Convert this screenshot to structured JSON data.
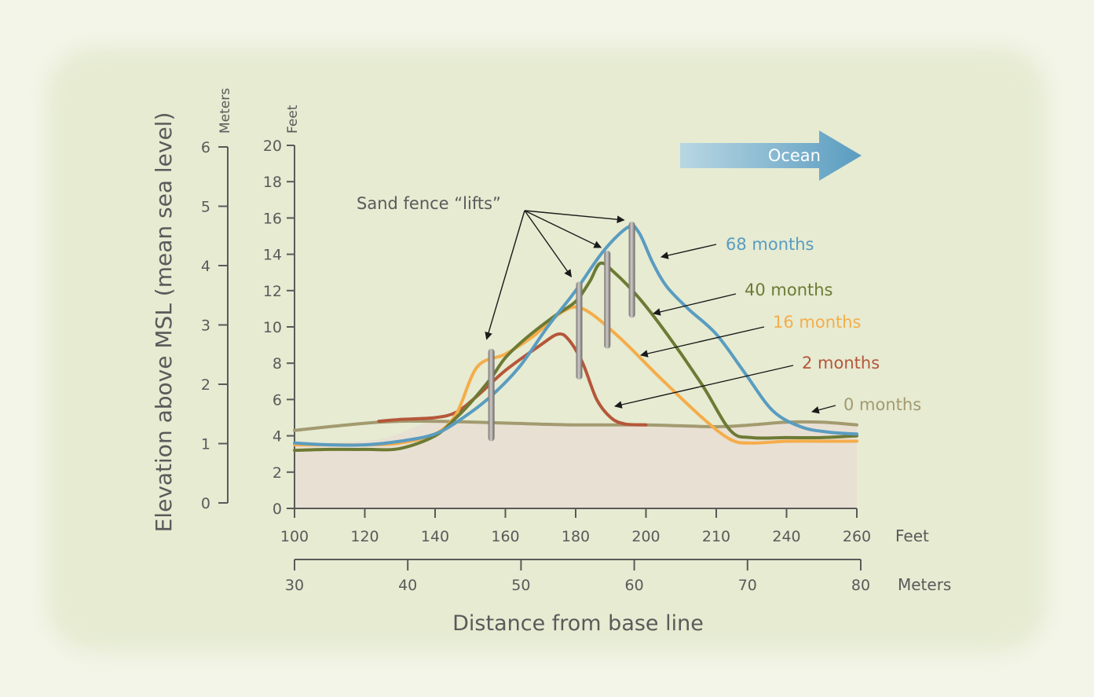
{
  "chart_data": {
    "type": "line",
    "ylabel": "Elevation above MSL (mean sea level)",
    "xlabel": "Distance from base line",
    "y_feet": {
      "unit_label": "Feet",
      "ticks": [
        0,
        2,
        4,
        6,
        8,
        10,
        12,
        14,
        16,
        18,
        20
      ],
      "ylim": [
        0,
        20
      ]
    },
    "y_meters": {
      "unit_label": "Meters",
      "ticks": [
        0,
        1,
        2,
        3,
        4,
        5,
        6
      ]
    },
    "x_feet": {
      "unit_label": "Feet",
      "ticks": [
        "100",
        "120",
        "140",
        "160",
        "180",
        "200",
        "210",
        "240",
        "260"
      ]
    },
    "x_meters": {
      "unit_label": "Meters",
      "ticks": [
        "30",
        "40",
        "50",
        "60",
        "70",
        "80"
      ]
    },
    "ocean_label": "Ocean",
    "fence_label": "Sand fence “lifts”",
    "fences": [
      {
        "x": 2.8,
        "bottom": 3.7,
        "top": 8.8
      },
      {
        "x": 4.05,
        "bottom": 7.1,
        "top": 12.5
      },
      {
        "x": 4.45,
        "bottom": 8.8,
        "top": 14.2
      },
      {
        "x": 4.8,
        "bottom": 10.5,
        "top": 15.8
      }
    ],
    "series": [
      {
        "name": "0 months",
        "color": "#a39a70",
        "x": [
          0,
          1.2,
          2,
          3,
          4,
          5,
          6,
          6.5,
          7,
          7.5,
          8
        ],
        "y": [
          4.3,
          4.75,
          4.8,
          4.7,
          4.6,
          4.6,
          4.5,
          4.6,
          4.75,
          4.75,
          4.6
        ]
      },
      {
        "name": "2 months",
        "color": "#b5573a",
        "x": [
          1.2,
          1.5,
          2.0,
          2.3,
          2.6,
          3.0,
          3.5,
          3.75,
          3.9,
          4.1,
          4.3,
          4.5,
          4.7,
          5.0
        ],
        "y": [
          4.8,
          4.9,
          5.0,
          5.3,
          6.2,
          7.6,
          9.0,
          9.6,
          9.3,
          8.0,
          6.0,
          5.0,
          4.65,
          4.6
        ]
      },
      {
        "name": "16 months",
        "color": "#f5ad4a",
        "x": [
          0,
          0.5,
          1.0,
          1.5,
          2.0,
          2.3,
          2.6,
          3.0,
          3.4,
          3.8,
          4.1,
          4.6,
          5.2,
          5.8,
          6.2,
          6.5,
          7.0,
          7.5,
          8
        ],
        "y": [
          3.5,
          3.5,
          3.5,
          3.6,
          4.1,
          5.2,
          7.8,
          8.5,
          9.5,
          10.8,
          11.0,
          9.5,
          7.2,
          5.0,
          3.8,
          3.6,
          3.7,
          3.7,
          3.7
        ]
      },
      {
        "name": "40 months",
        "color": "#6d7a34",
        "x": [
          0,
          0.5,
          1.0,
          1.5,
          2.0,
          2.3,
          2.5,
          2.8,
          3.0,
          3.3,
          3.7,
          4.0,
          4.2,
          4.35,
          4.55,
          4.9,
          5.3,
          5.8,
          6.2,
          6.5,
          7.0,
          7.5,
          8
        ],
        "y": [
          3.2,
          3.25,
          3.25,
          3.3,
          4.0,
          5.0,
          5.8,
          7.2,
          8.3,
          9.4,
          10.6,
          11.4,
          12.5,
          13.5,
          13.0,
          11.6,
          9.6,
          6.8,
          4.3,
          3.9,
          3.9,
          3.9,
          4.0
        ]
      },
      {
        "name": "68 months",
        "color": "#5a9cc0",
        "x": [
          0,
          0.5,
          1.0,
          1.5,
          2.0,
          2.4,
          2.8,
          3.2,
          3.6,
          4.0,
          4.4,
          4.75,
          4.9,
          5.1,
          5.3,
          5.6,
          6.0,
          6.4,
          6.8,
          7.2,
          7.6,
          8
        ],
        "y": [
          3.6,
          3.5,
          3.5,
          3.7,
          4.1,
          5.0,
          6.2,
          7.8,
          10.0,
          12.0,
          14.2,
          15.5,
          15.2,
          13.5,
          12.2,
          11.0,
          9.6,
          7.5,
          5.4,
          4.5,
          4.2,
          4.1
        ]
      }
    ]
  }
}
